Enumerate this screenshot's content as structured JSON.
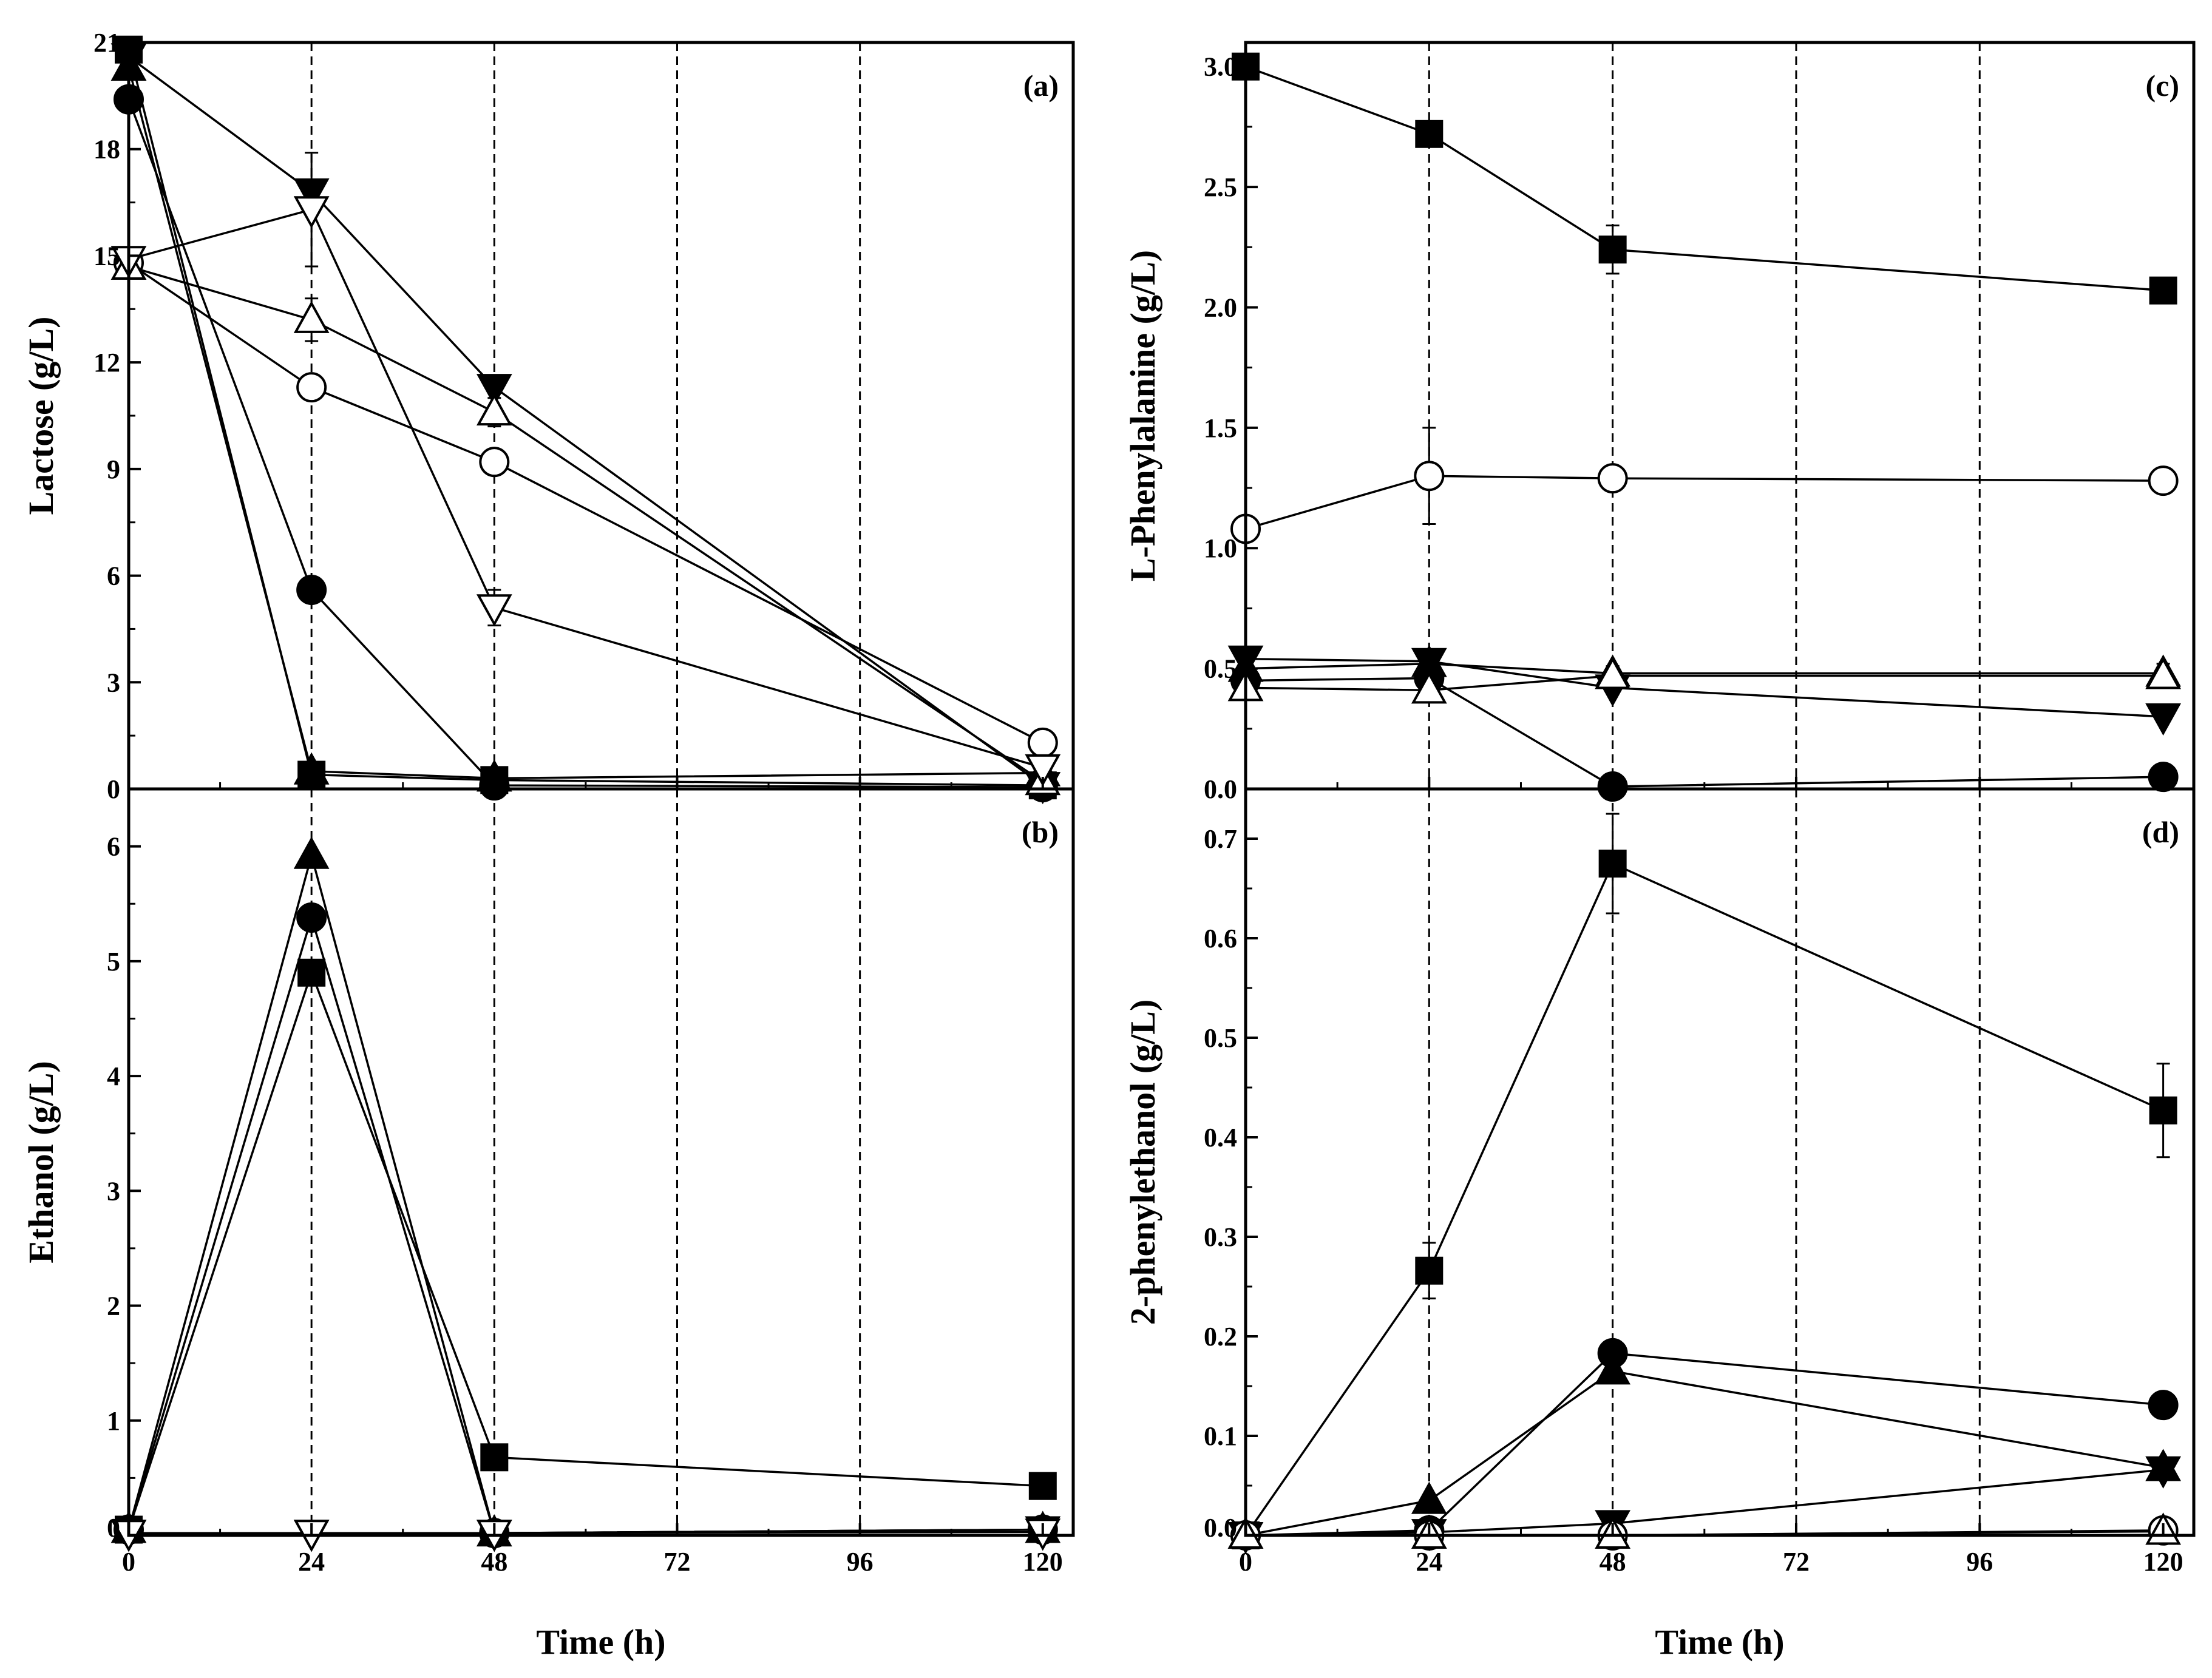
{
  "figure": {
    "xlabel": "Time (h)"
  },
  "marker_styles": {
    "filled_square": "#000000",
    "filled_circle": "#000000",
    "filled_triangle_up": "#000000",
    "filled_triangle_down": "#000000",
    "open_circle": "#ffffff",
    "open_triangle_up": "#ffffff",
    "open_triangle_down": "#ffffff"
  },
  "chart_data": [
    {
      "id": "a",
      "panel_label": "(a)",
      "type": "line",
      "ylabel": "Lactose (g/L)",
      "xlabel": "",
      "xlim": [
        0,
        124
      ],
      "ylim": [
        0,
        21
      ],
      "xticks": [
        "0",
        "24",
        "48",
        "72",
        "96",
        "120"
      ],
      "yticks": [
        "0",
        "3",
        "6",
        "9",
        "12",
        "15",
        "18",
        "21"
      ],
      "vlines": [
        24,
        48,
        72,
        96
      ],
      "x": [
        0,
        24,
        48,
        120
      ],
      "series": [
        {
          "name": "filled square",
          "marker": "filled_square",
          "values": [
            20.8,
            0.4,
            0.25,
            0.1
          ]
        },
        {
          "name": "filled circle",
          "marker": "filled_circle",
          "values": [
            19.4,
            5.6,
            0.1,
            0.05
          ]
        },
        {
          "name": "filled triangle up",
          "marker": "filled_triangle_up",
          "values": [
            20.3,
            0.5,
            0.3,
            0.45
          ]
        },
        {
          "name": "filled triangle down",
          "marker": "filled_triangle_down",
          "values": [
            20.6,
            16.8,
            11.3,
            0.1
          ]
        },
        {
          "name": "open circle",
          "marker": "open_circle",
          "values": [
            14.8,
            11.3,
            9.2,
            1.3
          ],
          "err": [
            0,
            0.3,
            0.3,
            0.2
          ]
        },
        {
          "name": "open triangle up",
          "marker": "open_triangle_up",
          "values": [
            14.7,
            13.2,
            10.6,
            0.2
          ],
          "err": [
            0,
            0.6,
            0.4,
            0
          ]
        },
        {
          "name": "open triangle down",
          "marker": "open_triangle_down",
          "values": [
            14.9,
            16.3,
            5.1,
            0.6
          ],
          "err": [
            0,
            1.6,
            0.5,
            0.4
          ]
        }
      ]
    },
    {
      "id": "b",
      "panel_label": "(b)",
      "type": "line",
      "ylabel": "Ethanol (g/L)",
      "xlabel": "Time (h)",
      "xlim": [
        0,
        124
      ],
      "ylim": [
        0,
        6.5
      ],
      "xticks": [
        "0",
        "24",
        "48",
        "72",
        "96",
        "120"
      ],
      "yticks": [
        "0",
        "1",
        "2",
        "3",
        "4",
        "5",
        "6"
      ],
      "vlines": [
        24,
        48,
        72,
        96
      ],
      "x": [
        0,
        24,
        48,
        120
      ],
      "series": [
        {
          "name": "filled square",
          "marker": "filled_square",
          "values": [
            0.05,
            4.9,
            0.68,
            0.43
          ]
        },
        {
          "name": "filled circle",
          "marker": "filled_circle",
          "values": [
            0.05,
            5.38,
            0.02,
            0.05
          ]
        },
        {
          "name": "filled triangle up",
          "marker": "filled_triangle_up",
          "values": [
            0.05,
            5.92,
            0.02,
            0.05
          ]
        },
        {
          "name": "filled triangle down",
          "marker": "filled_triangle_down",
          "values": [
            0.02,
            0.02,
            0.02,
            0.05
          ]
        },
        {
          "name": "open triangle down",
          "marker": "open_triangle_down",
          "values": [
            0.02,
            0.02,
            0.02,
            0.03
          ]
        }
      ]
    },
    {
      "id": "c",
      "panel_label": "(c)",
      "type": "line",
      "ylabel": "L-Phenylalanine (g/L)",
      "xlabel": "",
      "xlim": [
        0,
        124
      ],
      "ylim": [
        0,
        3.1
      ],
      "xticks": [
        "0",
        "24",
        "48",
        "72",
        "96",
        "120"
      ],
      "yticks": [
        "0.0",
        "0.5",
        "1.0",
        "1.5",
        "2.0",
        "2.5",
        "3.0"
      ],
      "vlines": [
        24,
        48,
        72,
        96
      ],
      "x": [
        0,
        24,
        48,
        120
      ],
      "series": [
        {
          "name": "filled square",
          "marker": "filled_square",
          "values": [
            3.0,
            2.72,
            2.24,
            2.07
          ],
          "err": [
            0.04,
            0.02,
            0.1,
            0.02
          ]
        },
        {
          "name": "open circle",
          "marker": "open_circle",
          "values": [
            1.08,
            1.3,
            1.29,
            1.28
          ],
          "err": [
            0.03,
            0.2,
            0.02,
            0.02
          ]
        },
        {
          "name": "filled triangle up",
          "marker": "filled_triangle_up",
          "values": [
            0.5,
            0.52,
            0.48,
            0.48
          ],
          "err": [
            0,
            0.06,
            0.03,
            0.04
          ]
        },
        {
          "name": "filled circle",
          "marker": "filled_circle",
          "values": [
            0.45,
            0.46,
            0.01,
            0.05
          ]
        },
        {
          "name": "filled triangle down",
          "marker": "filled_triangle_down",
          "values": [
            0.54,
            0.53,
            0.42,
            0.3
          ]
        },
        {
          "name": "open triangle up",
          "marker": "open_triangle_up",
          "values": [
            0.42,
            0.41,
            0.47,
            0.47
          ]
        }
      ]
    },
    {
      "id": "d",
      "panel_label": "(d)",
      "type": "line",
      "ylabel": "2-phenylethanol (g/L)",
      "xlabel": "Time (h)",
      "xlim": [
        0,
        124
      ],
      "ylim": [
        0,
        0.75
      ],
      "xticks": [
        "0",
        "24",
        "48",
        "72",
        "96",
        "120"
      ],
      "yticks": [
        "0.0",
        "0.1",
        "0.2",
        "0.3",
        "0.4",
        "0.5",
        "0.6",
        "0.7"
      ],
      "vlines": [
        24,
        48,
        72,
        96
      ],
      "x": [
        0,
        24,
        48,
        120
      ],
      "series": [
        {
          "name": "filled square",
          "marker": "filled_square",
          "values": [
            0.0,
            0.266,
            0.675,
            0.427
          ],
          "err": [
            0,
            0.028,
            0.05,
            0.047
          ]
        },
        {
          "name": "filled circle",
          "marker": "filled_circle",
          "values": [
            0.0,
            0.005,
            0.183,
            0.131
          ]
        },
        {
          "name": "filled triangle up",
          "marker": "filled_triangle_up",
          "values": [
            0.0,
            0.035,
            0.165,
            0.068
          ]
        },
        {
          "name": "filled triangle down",
          "marker": "filled_triangle_down",
          "values": [
            0.0,
            0.003,
            0.012,
            0.066
          ]
        },
        {
          "name": "open circle",
          "marker": "open_circle",
          "values": [
            0.0,
            0.0,
            0.0,
            0.005
          ]
        },
        {
          "name": "open triangle up",
          "marker": "open_triangle_up",
          "values": [
            0.0,
            0.0,
            0.0,
            0.004
          ]
        }
      ]
    }
  ]
}
